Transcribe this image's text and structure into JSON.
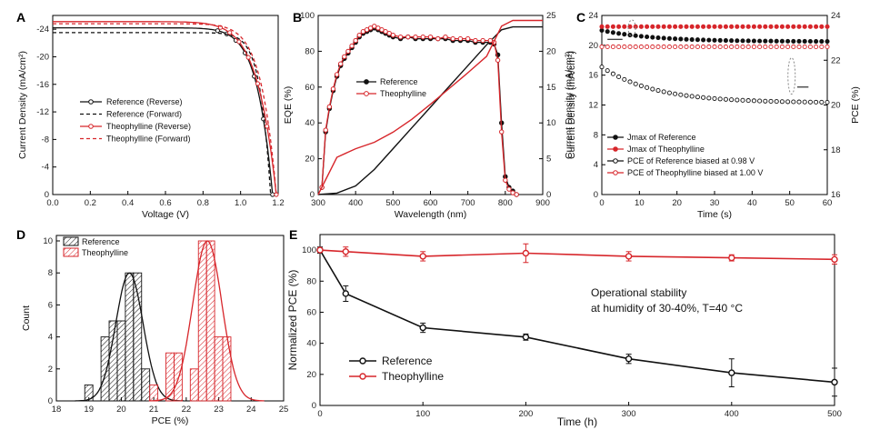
{
  "colors": {
    "reference": "#111111",
    "theophylline": "#d7262b",
    "axis": "#000000"
  },
  "chart_data": [
    {
      "id": "A",
      "type": "line",
      "panel_label": "A",
      "xlabel": "Voltage (V)",
      "ylabel": "Current Density (mA/cm²)",
      "xlim": [
        0,
        1.2
      ],
      "ylim": [
        -26,
        0
      ],
      "xticks": [
        "0.0",
        "0.2",
        "0.4",
        "0.6",
        "0.8",
        "1.0",
        "1.2"
      ],
      "yticks": [
        "-24",
        "-20",
        "-16",
        "-12",
        "-8",
        "-4",
        "0"
      ],
      "legend": [
        "Reference (Reverse)",
        "Reference (Forward)",
        "Theophylline (Reverse)",
        "Theophylline (Forward)"
      ],
      "series": [
        {
          "name": "Reference (Reverse)",
          "style": "solid-marker",
          "color": "#111111",
          "jsc": 24.2,
          "voc": 1.17,
          "n": 2.2
        },
        {
          "name": "Reference (Forward)",
          "style": "dashed",
          "color": "#111111",
          "jsc": 23.5,
          "voc": 1.16,
          "n": 3.3
        },
        {
          "name": "Theophylline (Reverse)",
          "style": "solid-marker",
          "color": "#d7262b",
          "jsc": 25.1,
          "voc": 1.19,
          "n": 1.8
        },
        {
          "name": "Theophylline (Forward)",
          "style": "dashed",
          "color": "#d7262b",
          "jsc": 24.8,
          "voc": 1.19,
          "n": 2.3
        }
      ]
    },
    {
      "id": "B",
      "type": "line",
      "panel_label": "B",
      "xlabel": "Wavelength (nm)",
      "ylabel": "EQE (%)",
      "y2label": "Current Density (mA/cm²)",
      "xlim": [
        300,
        900
      ],
      "ylim": [
        0,
        100
      ],
      "y2lim": [
        0,
        25
      ],
      "xticks": [
        "300",
        "400",
        "500",
        "600",
        "700",
        "800",
        "900"
      ],
      "yticks": [
        "0",
        "20",
        "40",
        "60",
        "80",
        "100"
      ],
      "y2ticks": [
        "0",
        "5",
        "10",
        "15",
        "20",
        "25"
      ],
      "legend": [
        "Reference",
        "Theophylline"
      ],
      "eqe_x": [
        310,
        320,
        330,
        340,
        350,
        360,
        370,
        380,
        390,
        400,
        410,
        420,
        430,
        440,
        450,
        460,
        470,
        480,
        490,
        500,
        520,
        540,
        560,
        580,
        600,
        620,
        640,
        660,
        680,
        700,
        720,
        740,
        760,
        770,
        780,
        790,
        800,
        810,
        820,
        830
      ],
      "eqe": {
        "Reference": [
          4,
          35,
          48,
          58,
          66,
          72,
          76,
          79,
          82,
          85,
          88,
          90,
          91,
          92,
          93,
          92,
          91,
          90,
          89,
          88,
          87,
          88,
          87,
          87,
          87,
          87,
          87,
          86,
          86,
          86,
          85,
          85,
          85,
          84,
          78,
          40,
          10,
          4,
          2,
          0
        ],
        "Theophylline": [
          4,
          36,
          49,
          59,
          67,
          73,
          77,
          80,
          83,
          86,
          89,
          91,
          92,
          93,
          94,
          93,
          92,
          91,
          90,
          89,
          88,
          88,
          88,
          88,
          88,
          87,
          88,
          87,
          87,
          87,
          86,
          86,
          86,
          85,
          75,
          35,
          8,
          3,
          1,
          0
        ]
      },
      "integrated_x": [
        300,
        350,
        400,
        450,
        500,
        550,
        600,
        650,
        700,
        750,
        790,
        820,
        840,
        900
      ],
      "integrated": {
        "Reference": [
          0,
          0.2,
          1.2,
          3.5,
          6.4,
          9.3,
          12.2,
          15.1,
          18.0,
          20.9,
          23.0,
          23.4,
          23.4,
          23.4
        ],
        "Theophylline": [
          0,
          5.2,
          6.4,
          7.3,
          8.7,
          10.5,
          12.6,
          14.8,
          17.0,
          19.3,
          23.5,
          24.3,
          24.3,
          24.3
        ]
      }
    },
    {
      "id": "C",
      "type": "scatter",
      "panel_label": "C",
      "xlabel": "Time (s)",
      "ylabel": "Current Density (mA/cm²)",
      "y2label": "PCE (%)",
      "xlim": [
        0,
        60
      ],
      "ylim": [
        0,
        24
      ],
      "y2lim": [
        16,
        24
      ],
      "xticks": [
        "0",
        "10",
        "20",
        "30",
        "40",
        "50",
        "60"
      ],
      "yticks": [
        "0",
        "4",
        "8",
        "12",
        "16",
        "20",
        "24"
      ],
      "y2ticks": [
        "16",
        "18",
        "20",
        "22",
        "24"
      ],
      "legend": [
        "Jmax of Reference",
        "Jmax of Theophylline",
        "PCE of Reference biased at 0.98 V",
        "PCE of Theophylline biased at 1.00 V"
      ],
      "series": [
        {
          "name": "Jmax of Reference",
          "axis": "left",
          "marker": "filled",
          "color": "#111111",
          "start": 22.0,
          "end": 20.5,
          "shape": "decay"
        },
        {
          "name": "Jmax of Theophylline",
          "axis": "left",
          "marker": "filled",
          "color": "#d7262b",
          "start": 22.5,
          "end": 22.5,
          "shape": "flat"
        },
        {
          "name": "PCE of Reference biased at 0.98 V",
          "axis": "right",
          "marker": "open",
          "color": "#111111",
          "start": 21.7,
          "end": 20.1,
          "shape": "decay"
        },
        {
          "name": "PCE of Theophylline biased at 1.00 V",
          "axis": "right",
          "marker": "open",
          "color": "#d7262b",
          "start": 22.6,
          "end": 22.6,
          "shape": "flat"
        }
      ]
    },
    {
      "id": "D",
      "type": "bar",
      "panel_label": "D",
      "xlabel": "PCE (%)",
      "ylabel": "Count",
      "xlim": [
        18,
        25
      ],
      "ylim": [
        0,
        10
      ],
      "xticks": [
        "18",
        "19",
        "20",
        "21",
        "22",
        "23",
        "24",
        "25"
      ],
      "yticks": [
        "0",
        "2",
        "4",
        "6",
        "8",
        "10"
      ],
      "legend": [
        "Reference",
        "Theophylline"
      ],
      "bin_width": 0.25,
      "series": [
        {
          "name": "Reference",
          "bins": [
            19.0,
            19.5,
            19.75,
            20.0,
            20.25,
            20.5,
            20.75
          ],
          "counts": [
            1,
            4,
            5,
            5,
            8,
            8,
            2
          ],
          "fit_mean": 20.25,
          "fit_sd": 0.42,
          "fit_peak": 8
        },
        {
          "name": "Theophylline",
          "bins": [
            21.0,
            21.5,
            21.75,
            22.25,
            22.5,
            22.75,
            23.0,
            23.25
          ],
          "counts": [
            1,
            3,
            3,
            2,
            10,
            10,
            4,
            4
          ],
          "fit_mean": 22.65,
          "fit_sd": 0.45,
          "fit_peak": 10
        }
      ]
    },
    {
      "id": "E",
      "type": "line",
      "panel_label": "E",
      "xlabel": "Time (h)",
      "ylabel": "Normalized PCE (%)",
      "xlim": [
        0,
        500
      ],
      "ylim": [
        0,
        110
      ],
      "xticks": [
        "0",
        "100",
        "200",
        "300",
        "400",
        "500"
      ],
      "yticks": [
        "0",
        "20",
        "40",
        "60",
        "80",
        "100"
      ],
      "annotation_line1": "Operational stability",
      "annotation_line2": "at humidity of 30-40%, T=40 °C",
      "legend": [
        "Reference",
        "Theophylline"
      ],
      "x": [
        0,
        25,
        100,
        200,
        300,
        400,
        500
      ],
      "series": [
        {
          "name": "Reference",
          "values": [
            100,
            72,
            50,
            44,
            30,
            21,
            15
          ],
          "errors": [
            2,
            5,
            3,
            2,
            3,
            9,
            9
          ]
        },
        {
          "name": "Theophylline",
          "values": [
            100,
            99,
            96,
            98,
            96,
            95,
            94
          ],
          "errors": [
            1,
            3,
            3,
            6,
            3,
            2,
            3
          ]
        }
      ]
    }
  ]
}
